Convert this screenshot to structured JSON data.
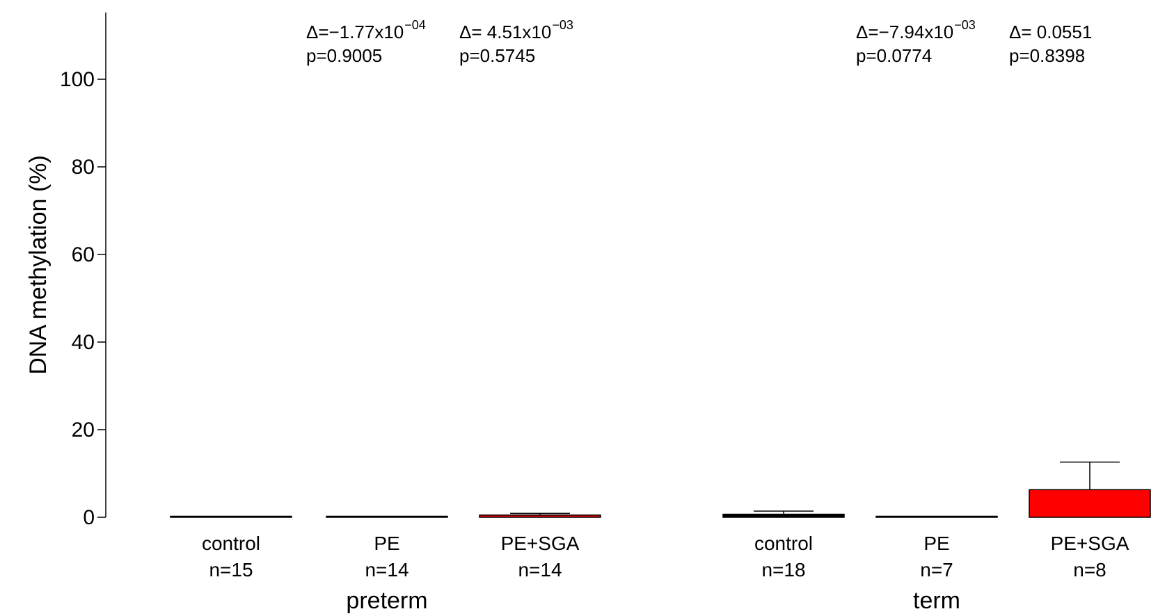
{
  "chart_data": {
    "type": "bar",
    "ylabel": "DNA methylation (%)",
    "ylim": [
      0,
      110
    ],
    "yticks": [
      "0",
      "20",
      "40",
      "60",
      "80",
      "100"
    ],
    "grid": false,
    "colors": {
      "control": "#000000",
      "PE": "#000000",
      "PE+SGA": "#ff0000"
    },
    "groups": [
      {
        "label": "preterm",
        "bars": [
          {
            "category": "control",
            "n_label": "n=15",
            "value": 0.05,
            "error": 0.0
          },
          {
            "category": "PE",
            "n_label": "n=14",
            "value": 0.05,
            "error": 0.0,
            "delta": "Δ=−1.77x10",
            "delta_exp": "−04",
            "p": "p=0.9005"
          },
          {
            "category": "PE+SGA",
            "n_label": "n=14",
            "value": 0.5,
            "error": 0.4,
            "delta": "Δ= 4.51x10",
            "delta_exp": "−03",
            "p": "p=0.5745"
          }
        ]
      },
      {
        "label": "term",
        "bars": [
          {
            "category": "control",
            "n_label": "n=18",
            "value": 0.7,
            "error": 0.7
          },
          {
            "category": "PE",
            "n_label": "n=7",
            "value": 0.05,
            "error": 0.0,
            "delta": "Δ=−7.94x10",
            "delta_exp": "−03",
            "p": "p=0.0774"
          },
          {
            "category": "PE+SGA",
            "n_label": "n=8",
            "value": 6.3,
            "error": 6.3,
            "delta": "Δ= 0.0551",
            "delta_exp": "",
            "p": "p=0.8398"
          }
        ]
      }
    ]
  }
}
